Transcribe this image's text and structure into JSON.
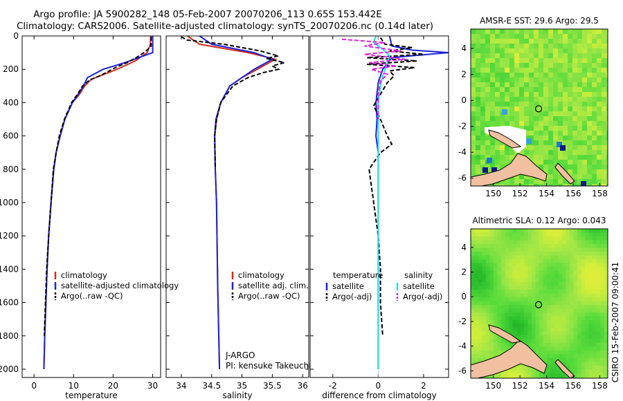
{
  "title": {
    "line1": "Argo profile: JA 5900282_148 05-Feb-2007 20070206_113 0.65S 153.442E",
    "line2": "Climatology: CARS2006. Satellite-adjusted climatology: synTS_20070206.nc (0.14d later)"
  },
  "side_label": "CSIRO 15-Feb-2007 09:00:41",
  "colors": {
    "climatology": "#d42a1a",
    "satellite": "#1a22d8",
    "argo": "#000000",
    "sal_satellite": "#22e0f0",
    "sal_argo": "#e020e0",
    "land": "#f0c0a0"
  },
  "chart_data": [
    {
      "id": "temperature",
      "type": "line",
      "xlabel": "temperature",
      "ylabel": "",
      "xlim": [
        -3,
        32
      ],
      "ylim": [
        2050,
        0
      ],
      "xticks": [
        0,
        10,
        20,
        30
      ],
      "xtick_labels": [
        "0",
        "10",
        "20",
        "30"
      ],
      "yticks": [
        0,
        200,
        400,
        600,
        800,
        1000,
        1200,
        1400,
        1600,
        1800,
        2000
      ],
      "ytick_labels": [
        "0",
        "200",
        "400",
        "600",
        "800",
        "1000",
        "1200",
        "1400",
        "1600",
        "1800",
        "2000"
      ],
      "legend": {
        "position": "lower-left",
        "entries": [
          "climatology",
          "satellite-adjusted climatology",
          "Argo(..raw -QC)"
        ]
      },
      "series": [
        {
          "name": "climatology",
          "color": "#d42a1a",
          "dash": "",
          "points": [
            [
              29.5,
              0
            ],
            [
              29.4,
              50
            ],
            [
              28.6,
              100
            ],
            [
              25.6,
              150
            ],
            [
              21,
              200
            ],
            [
              14.5,
              260
            ],
            [
              12.8,
              300
            ],
            [
              11.5,
              350
            ],
            [
              9.7,
              400
            ],
            [
              7.8,
              500
            ],
            [
              6.6,
              600
            ],
            [
              5.6,
              700
            ],
            [
              5,
              800
            ],
            [
              4.3,
              1000
            ],
            [
              3.7,
              1200
            ],
            [
              3.3,
              1400
            ],
            [
              3,
              1600
            ],
            [
              2.7,
              1800
            ],
            [
              2.5,
              2000
            ]
          ]
        },
        {
          "name": "satellite-adjusted climatology",
          "color": "#1a22d8",
          "dash": "",
          "points": [
            [
              30,
              0
            ],
            [
              30,
              100
            ],
            [
              23,
              160
            ],
            [
              17.5,
              200
            ],
            [
              13.5,
              250
            ],
            [
              12.5,
              300
            ],
            [
              11.2,
              350
            ],
            [
              9.7,
              400
            ],
            [
              7.8,
              500
            ],
            [
              6.6,
              600
            ],
            [
              5.6,
              700
            ],
            [
              5,
              800
            ],
            [
              4.3,
              1000
            ],
            [
              3.7,
              1200
            ],
            [
              3.3,
              1400
            ],
            [
              3,
              1600
            ],
            [
              2.7,
              1800
            ],
            [
              2.5,
              2000
            ]
          ]
        },
        {
          "name": "Argo(..raw -QC)",
          "color": "#000000",
          "dash": "6,3",
          "points": [
            [
              29.6,
              5
            ],
            [
              29.6,
              60
            ],
            [
              28.8,
              80
            ],
            [
              27.5,
              105
            ],
            [
              25.5,
              135
            ],
            [
              23.5,
              160
            ],
            [
              21,
              185
            ],
            [
              19,
              210
            ],
            [
              17,
              235
            ],
            [
              14,
              265
            ],
            [
              12.3,
              300
            ],
            [
              11,
              350
            ],
            [
              9.5,
              400
            ],
            [
              7.7,
              500
            ],
            [
              6.4,
              600
            ],
            [
              5.6,
              700
            ],
            [
              4.9,
              800
            ],
            [
              4.3,
              1000
            ],
            [
              3.7,
              1200
            ],
            [
              3.2,
              1400
            ],
            [
              2.9,
              1600
            ],
            [
              2.6,
              1800
            ]
          ]
        }
      ]
    },
    {
      "id": "salinity",
      "type": "line",
      "xlabel": "salinity",
      "ylabel": "",
      "xlim": [
        33.75,
        36.1
      ],
      "ylim": [
        2050,
        0
      ],
      "xticks": [
        34,
        34.5,
        35,
        35.5,
        36
      ],
      "xtick_labels": [
        "34",
        "34.5",
        "35",
        "35.5",
        "36"
      ],
      "legend": {
        "position": "lower-left",
        "entries": [
          "climatology",
          "satellite adj. clim.",
          "Argo(..raw -QC)"
        ]
      },
      "annotation": [
        "J-ARGO",
        "PI: kensuke Takeuchi"
      ],
      "series": [
        {
          "name": "climatology",
          "color": "#d42a1a",
          "dash": "",
          "points": [
            [
              34.1,
              0
            ],
            [
              34.3,
              50
            ],
            [
              35.1,
              100
            ],
            [
              35.55,
              140
            ],
            [
              35.4,
              170
            ],
            [
              35.25,
              200
            ],
            [
              35.0,
              250
            ],
            [
              34.8,
              300
            ],
            [
              34.65,
              400
            ],
            [
              34.58,
              500
            ],
            [
              34.55,
              600
            ],
            [
              34.56,
              800
            ],
            [
              34.58,
              1000
            ],
            [
              34.6,
              1500
            ],
            [
              34.63,
              2000
            ]
          ]
        },
        {
          "name": "satellite adj. clim.",
          "color": "#1a22d8",
          "dash": "",
          "points": [
            [
              34.3,
              0
            ],
            [
              34.5,
              50
            ],
            [
              35.2,
              100
            ],
            [
              35.5,
              140
            ],
            [
              35.35,
              170
            ],
            [
              35.2,
              200
            ],
            [
              35.0,
              250
            ],
            [
              34.8,
              300
            ],
            [
              34.65,
              400
            ],
            [
              34.57,
              500
            ],
            [
              34.55,
              600
            ],
            [
              34.56,
              800
            ],
            [
              34.58,
              1000
            ],
            [
              34.6,
              1500
            ],
            [
              34.63,
              2000
            ]
          ]
        },
        {
          "name": "Argo(..raw -QC)",
          "color": "#000000",
          "dash": "6,3",
          "points": [
            [
              34.0,
              5
            ],
            [
              34.1,
              25
            ],
            [
              34.7,
              50
            ],
            [
              35.3,
              90
            ],
            [
              35.6,
              120
            ],
            [
              35.4,
              135
            ],
            [
              35.7,
              160
            ],
            [
              35.5,
              180
            ],
            [
              35.6,
              200
            ],
            [
              35.35,
              220
            ],
            [
              35.1,
              250
            ],
            [
              34.85,
              300
            ],
            [
              34.65,
              400
            ],
            [
              34.58,
              500
            ],
            [
              34.55,
              600
            ],
            [
              34.56,
              800
            ]
          ]
        }
      ]
    },
    {
      "id": "difference",
      "type": "line",
      "xlabel": "difference from climatology",
      "ylabel": "",
      "xlim": [
        -3,
        3.1
      ],
      "ylim": [
        2050,
        0
      ],
      "xticks": [
        -2,
        0,
        2
      ],
      "xtick_labels": [
        "-2",
        "0",
        "2"
      ],
      "legend": {
        "position": "lower-left",
        "headers": [
          "temperature",
          "salinity"
        ],
        "entries": [
          "satellite",
          "Argo(-adj)",
          "satellite",
          "Argo(-adj)"
        ]
      },
      "series": [
        {
          "name": "temperature satellite",
          "color": "#1a22d8",
          "dash": "",
          "points": [
            [
              0.5,
              0
            ],
            [
              0.6,
              60
            ],
            [
              1.5,
              85
            ],
            [
              3.1,
              100
            ],
            [
              0.6,
              130
            ],
            [
              0.2,
              200
            ],
            [
              0,
              280
            ],
            [
              -0.1,
              400
            ],
            [
              -0.05,
              500
            ],
            [
              -0.1,
              600
            ],
            [
              0,
              700
            ],
            [
              0,
              1000
            ],
            [
              0,
              2000
            ]
          ]
        },
        {
          "name": "temperature Argo(-adj)",
          "color": "#000000",
          "dash": "6,3",
          "points": [
            [
              0.1,
              10
            ],
            [
              0.3,
              50
            ],
            [
              1.5,
              70
            ],
            [
              0.5,
              90
            ],
            [
              2,
              110
            ],
            [
              -0.5,
              130
            ],
            [
              1.7,
              150
            ],
            [
              -0.5,
              170
            ],
            [
              1.6,
              190
            ],
            [
              0.5,
              210
            ],
            [
              0.7,
              240
            ],
            [
              0.4,
              280
            ],
            [
              0.1,
              350
            ],
            [
              -0.2,
              420
            ],
            [
              0.1,
              500
            ],
            [
              0.4,
              600
            ],
            [
              0.6,
              650
            ],
            [
              0.1,
              700
            ],
            [
              -0.4,
              800
            ],
            [
              -0.3,
              900
            ],
            [
              -0.2,
              1000
            ],
            [
              0,
              1200
            ],
            [
              0.1,
              1400
            ],
            [
              0.1,
              1600
            ],
            [
              0.2,
              1800
            ]
          ]
        },
        {
          "name": "salinity satellite",
          "color": "#22e0f0",
          "dash": "",
          "points": [
            [
              -0.1,
              0
            ],
            [
              -0.2,
              40
            ],
            [
              0.2,
              80
            ],
            [
              0.5,
              120
            ],
            [
              0.4,
              160
            ],
            [
              0.3,
              200
            ],
            [
              0.2,
              240
            ],
            [
              0.1,
              300
            ],
            [
              0,
              400
            ],
            [
              0,
              600
            ],
            [
              0,
              1000
            ],
            [
              0,
              2000
            ]
          ]
        },
        {
          "name": "salinity Argo(-adj)",
          "color": "#e020e0",
          "dash": "6,3",
          "points": [
            [
              -1.6,
              20
            ],
            [
              0.3,
              40
            ],
            [
              -0.6,
              60
            ],
            [
              1,
              90
            ],
            [
              -0.6,
              110
            ],
            [
              1.2,
              140
            ],
            [
              -0.4,
              160
            ],
            [
              0.8,
              180
            ],
            [
              -0.3,
              200
            ],
            [
              0.4,
              230
            ],
            [
              0.1,
              270
            ],
            [
              0,
              350
            ],
            [
              0,
              500
            ]
          ]
        }
      ]
    },
    {
      "id": "sst_map",
      "type": "heatmap",
      "title": "AMSR-E SST: 29.6 Argo: 29.5",
      "xlim": [
        148.3,
        158.6
      ],
      "ylim": [
        -6.6,
        5.5
      ],
      "xticks": [
        150,
        152,
        154,
        156,
        158
      ],
      "xtick_labels": [
        "150",
        "152",
        "154",
        "156",
        "158"
      ],
      "yticks": [
        4,
        2,
        0,
        -2,
        -4,
        -6
      ],
      "ytick_labels": [
        "4",
        "2",
        "0",
        "-2",
        "-4",
        "-6"
      ],
      "marker": {
        "lon": 153.4,
        "lat": -0.65
      }
    },
    {
      "id": "sla_map",
      "type": "heatmap",
      "title": "Altimetric SLA: 0.12 Argo: 0.043",
      "xlim": [
        148.3,
        158.6
      ],
      "ylim": [
        -6.6,
        5.5
      ],
      "xticks": [
        150,
        152,
        154,
        156,
        158
      ],
      "xtick_labels": [
        "150",
        "152",
        "154",
        "156",
        "158"
      ],
      "yticks": [
        4,
        2,
        0,
        -2,
        -4,
        -6
      ],
      "ytick_labels": [
        "4",
        "2",
        "0",
        "-2",
        "-4",
        "-6"
      ],
      "marker": {
        "lon": 153.4,
        "lat": -0.65
      }
    }
  ]
}
